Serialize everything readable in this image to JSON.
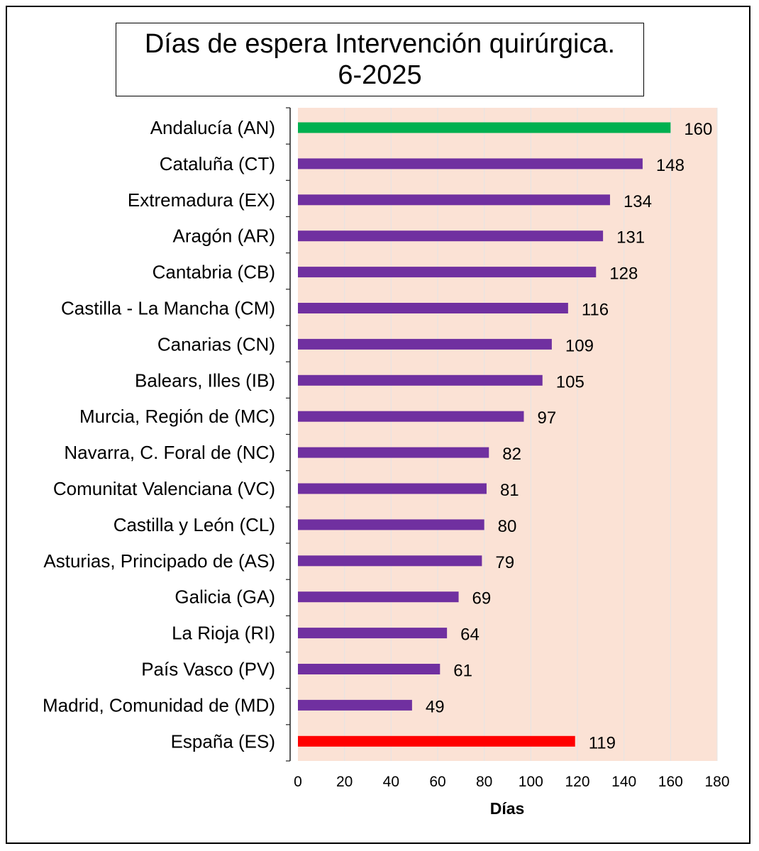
{
  "chart_data": {
    "type": "bar",
    "orientation": "horizontal",
    "title_line1": "Días de espera Intervención quirúrgica.",
    "title_line2": "6-2025",
    "xlabel": "Días",
    "xlim": [
      0,
      180
    ],
    "xticks": [
      0,
      20,
      40,
      60,
      80,
      100,
      120,
      140,
      160,
      180
    ],
    "categories": [
      "Andalucía (AN)",
      "Cataluña (CT)",
      "Extremadura (EX)",
      "Aragón (AR)",
      "Cantabria (CB)",
      "Castilla - La Mancha (CM)",
      "Canarias (CN)",
      "Balears, Illes (IB)",
      "Murcia, Región de (MC)",
      "Navarra, C. Foral de (NC)",
      "Comunitat Valenciana (VC)",
      "Castilla y León (CL)",
      "Asturias, Principado de (AS)",
      "Galicia (GA)",
      "La Rioja (RI)",
      "País Vasco (PV)",
      "Madrid, Comunidad de (MD)",
      "España (ES)"
    ],
    "values": [
      160,
      148,
      134,
      131,
      128,
      116,
      109,
      105,
      97,
      82,
      81,
      80,
      79,
      69,
      64,
      61,
      49,
      119
    ],
    "bar_colors": [
      "#00b050",
      "#7030a0",
      "#7030a0",
      "#7030a0",
      "#7030a0",
      "#7030a0",
      "#7030a0",
      "#7030a0",
      "#7030a0",
      "#7030a0",
      "#7030a0",
      "#7030a0",
      "#7030a0",
      "#7030a0",
      "#7030a0",
      "#7030a0",
      "#7030a0",
      "#ff0000"
    ],
    "plot_background": "#fbe2d5",
    "grid": true,
    "legend": "none"
  }
}
